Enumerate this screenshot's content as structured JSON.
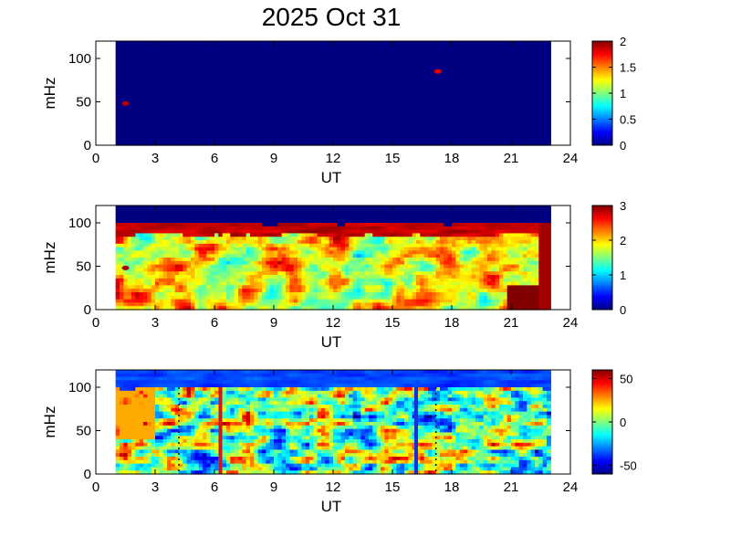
{
  "title": "2025 Oct 31",
  "chart_data": [
    {
      "type": "heatmap",
      "xlabel": "UT",
      "ylabel": "mHz",
      "xlim": [
        0,
        24
      ],
      "ylim": [
        0,
        120
      ],
      "xticks": [
        0,
        3,
        6,
        9,
        12,
        15,
        18,
        21,
        24
      ],
      "yticks": [
        0,
        50,
        100
      ],
      "data_x_range": [
        1.0,
        23.0
      ],
      "colorbar": {
        "min": 0,
        "max": 2,
        "ticks": [
          "0",
          "0.5",
          "1",
          "1.5",
          "2"
        ],
        "tick_values": [
          0,
          0.5,
          1,
          1.5,
          2
        ]
      },
      "background_level": 0,
      "features": [
        {
          "ut": 1.5,
          "mhz": 48,
          "value": 1.9
        },
        {
          "ut": 17.3,
          "mhz": 85,
          "value": 1.8
        }
      ]
    },
    {
      "type": "heatmap",
      "xlabel": "UT",
      "ylabel": "mHz",
      "xlim": [
        0,
        24
      ],
      "ylim": [
        0,
        120
      ],
      "xticks": [
        0,
        3,
        6,
        9,
        12,
        15,
        18,
        21,
        24
      ],
      "yticks": [
        0,
        50,
        100
      ],
      "data_x_range": [
        1.0,
        23.0
      ],
      "colorbar": {
        "min": 0,
        "max": 3,
        "ticks": [
          "0",
          "1",
          "2",
          "3"
        ],
        "tick_values": [
          0,
          1,
          2,
          3
        ]
      },
      "upper_band_cutoff_mhz": 100,
      "features": [
        {
          "ut": 1.5,
          "mhz": 48,
          "value": 2.9
        },
        {
          "ut": 21.8,
          "mhz": 15,
          "value": 3.0
        }
      ]
    },
    {
      "type": "heatmap",
      "xlabel": "UT",
      "ylabel": "mHz",
      "xlim": [
        0,
        24
      ],
      "ylim": [
        0,
        120
      ],
      "xticks": [
        0,
        3,
        6,
        9,
        12,
        15,
        18,
        21,
        24
      ],
      "yticks": [
        0,
        50,
        100
      ],
      "data_x_range": [
        1.0,
        23.0
      ],
      "colorbar": {
        "min": -60,
        "max": 60,
        "ticks": [
          "50",
          "0",
          "-50"
        ],
        "tick_values": [
          50,
          0,
          -50
        ]
      },
      "vertical_lines": [
        {
          "ut": 6.3,
          "color": "#c8191e"
        },
        {
          "ut": 16.2,
          "color": "#1a2fd8"
        }
      ],
      "dotted_lines_ut": [
        4.2,
        17.2
      ]
    }
  ]
}
